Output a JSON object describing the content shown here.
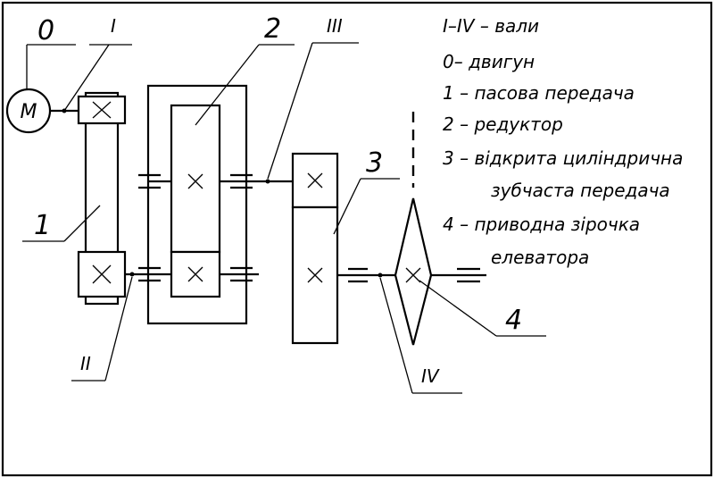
{
  "labels": {
    "motor_number": "0",
    "motor_symbol": "M",
    "belt_drive_number": "1",
    "gearbox_number": "2",
    "open_gear_number": "3",
    "sprocket_number": "4",
    "shaft_I": "I",
    "shaft_II": "II",
    "shaft_III": "III",
    "shaft_IV": "IV"
  },
  "legend": [
    "I–IV – вали",
    "0– двигун",
    "1 – пасова передача",
    "2 – редуктор",
    "3 – відкрита циліндрична",
    "зубчаста передача",
    "4 – приводна зірочка",
    "елеватора"
  ]
}
